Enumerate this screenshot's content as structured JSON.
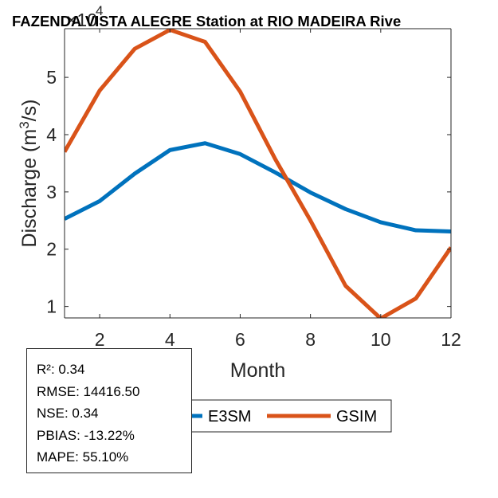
{
  "chart_data": {
    "type": "line",
    "title": "FAZENDA VISTA ALEGRE  Station at  RIO MADEIRA  Rive",
    "xlabel": "Month",
    "ylabel_main": "Discharge (m",
    "ylabel_sup": "3",
    "ylabel_tail": "/s)",
    "y_exponent_base": "×10",
    "y_exponent_power": "4",
    "x": [
      1,
      2,
      3,
      4,
      5,
      6,
      7,
      8,
      9,
      10,
      11,
      12
    ],
    "xlim": [
      1,
      12
    ],
    "ylim": [
      0.8,
      5.85
    ],
    "xticks": [
      2,
      4,
      6,
      8,
      10,
      12
    ],
    "yticks": [
      1,
      2,
      3,
      4,
      5
    ],
    "grid": false,
    "legend_position": "bottom",
    "series": [
      {
        "name": "E3SM",
        "color": "#0072BD",
        "values": [
          2.53,
          2.84,
          3.32,
          3.73,
          3.85,
          3.66,
          3.34,
          2.99,
          2.7,
          2.47,
          2.33,
          2.31
        ]
      },
      {
        "name": "GSIM",
        "color": "#D95319",
        "values": [
          3.7,
          4.77,
          5.5,
          5.83,
          5.62,
          4.75,
          3.57,
          2.5,
          1.36,
          0.79,
          1.14,
          2.03
        ]
      }
    ]
  },
  "stats": {
    "r2": "R²: 0.34",
    "rmse": "RMSE: 14416.50",
    "nse": "NSE: 0.34",
    "pbias": "PBIAS: -13.22%",
    "mape": "MAPE: 55.10%"
  }
}
